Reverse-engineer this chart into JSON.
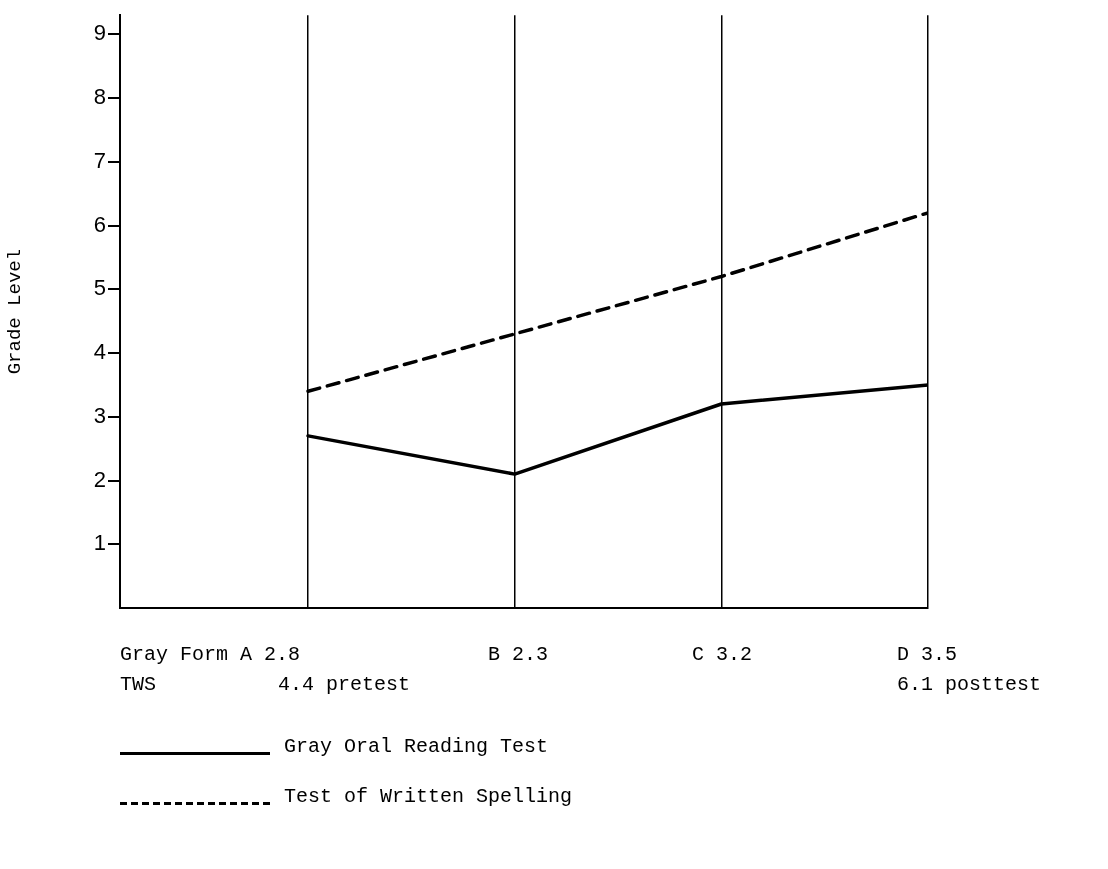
{
  "chart_data": {
    "type": "line",
    "ylabel": "Grade Level",
    "categories": [
      null,
      null,
      null,
      null
    ],
    "series": [
      {
        "name": "Gray Oral Reading Test",
        "color": "#000000",
        "line_style": "solid",
        "values": [
          2.7,
          2.1,
          3.2,
          3.5
        ]
      },
      {
        "name": "Test of Written Spelling",
        "color": "#000000",
        "line_style": "dashed",
        "values": [
          3.4,
          4.3,
          5.2,
          6.2
        ]
      }
    ],
    "ylim": [
      0,
      9.3
    ],
    "yticks": [
      1,
      2,
      3,
      4,
      5,
      6,
      7,
      8,
      9
    ],
    "grid": "x",
    "legend": "bottom",
    "marker": "none",
    "annotations": [
      "Gray Form A 2.8",
      "B 2.3",
      "C 3.2",
      "D 3.5",
      "TWS",
      "4.4 pretest",
      "6.1 posttest"
    ]
  }
}
